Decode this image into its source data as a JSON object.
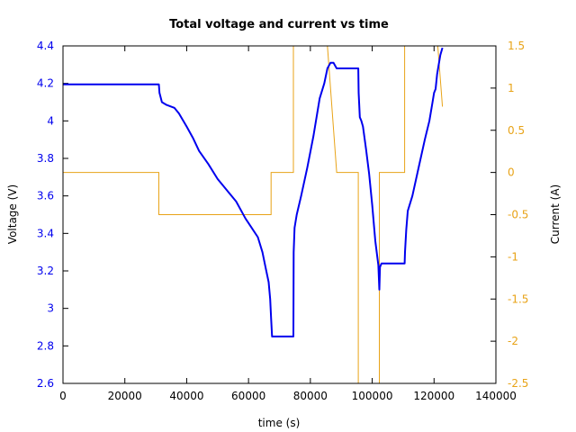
{
  "chart_data": {
    "type": "line",
    "title": "Total voltage and current vs time",
    "xlabel": "time (s)",
    "ylabel_left": "Voltage (V)",
    "ylabel_right": "Current (A)",
    "xlim": [
      0,
      140000
    ],
    "ylim_left": [
      2.6,
      4.4
    ],
    "ylim_right": [
      -2.5,
      1.5
    ],
    "x_ticks": [
      "0",
      "20000",
      "40000",
      "60000",
      "80000",
      "100000",
      "120000",
      "140000"
    ],
    "y_left_ticks": [
      "2.6",
      "2.8",
      "3",
      "3.2",
      "3.4",
      "3.6",
      "3.8",
      "4",
      "4.2",
      "4.4"
    ],
    "y_right_ticks": [
      "-2.5",
      "-2",
      "-1.5",
      "-1",
      "-0.5",
      "0",
      "0.5",
      "1",
      "1.5"
    ],
    "grid": false,
    "colors": {
      "voltage": "#0000ee",
      "current": "#e8a317",
      "left_axis_text": "#0000ee",
      "right_axis_text": "#e8a317"
    },
    "series": [
      {
        "axis": "left",
        "x": [
          0,
          31000,
          31200,
          32000,
          33500,
          36000,
          37500,
          40000,
          42000,
          44000,
          47000,
          50000,
          53000,
          56000,
          59000,
          61000,
          63000,
          64500,
          65500,
          66500,
          67000,
          67300,
          67600,
          74500,
          74600,
          74900,
          75600,
          77000,
          79000,
          81000,
          83000,
          84500,
          85500,
          86500,
          87500,
          88000,
          88500,
          95500,
          95600,
          96000,
          96500,
          97000,
          98000,
          99000,
          100000,
          101000,
          102000,
          102300,
          102500,
          103000,
          110500,
          110600,
          111000,
          111500,
          113000,
          115000,
          117000,
          118500,
          119500,
          120000,
          120500,
          121000,
          122000,
          122700
        ],
        "y": [
          4.195,
          4.195,
          4.15,
          4.1,
          4.085,
          4.07,
          4.04,
          3.97,
          3.91,
          3.84,
          3.77,
          3.69,
          3.63,
          3.57,
          3.48,
          3.43,
          3.38,
          3.3,
          3.22,
          3.14,
          3.05,
          2.95,
          2.85,
          2.85,
          3.3,
          3.43,
          3.5,
          3.6,
          3.75,
          3.92,
          4.12,
          4.2,
          4.28,
          4.31,
          4.31,
          4.295,
          4.28,
          4.28,
          4.15,
          4.02,
          4.0,
          3.97,
          3.85,
          3.72,
          3.55,
          3.36,
          3.23,
          3.1,
          3.22,
          3.24,
          3.24,
          3.3,
          3.42,
          3.52,
          3.6,
          3.75,
          3.9,
          4.0,
          4.1,
          4.15,
          4.17,
          4.25,
          4.35,
          4.39
        ]
      },
      {
        "axis": "right",
        "x": [
          0,
          31000,
          31000,
          67300,
          67300,
          74500,
          74500,
          85500,
          88500,
          95500,
          95500,
          102300,
          102300,
          110500,
          110500,
          121000,
          122700
        ],
        "y": [
          0,
          0,
          -0.5,
          -0.5,
          0,
          0,
          2.0,
          1.5,
          0,
          0,
          -2.6,
          -2.6,
          0,
          0,
          1.6,
          1.6,
          0.78
        ]
      }
    ]
  }
}
